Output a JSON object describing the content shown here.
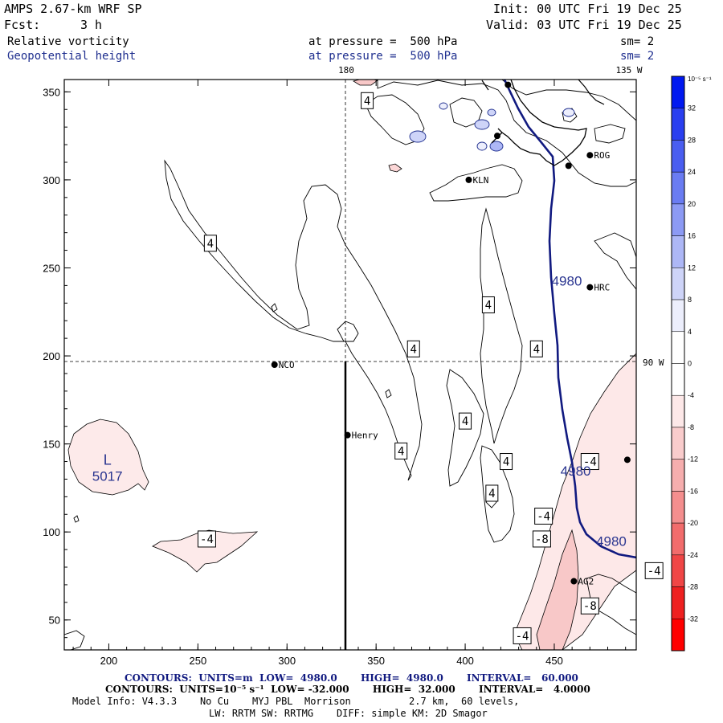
{
  "header": {
    "model": "AMPS 2.67-km WRF SP",
    "init": "Init: 00 UTC Fri 19 Dec 25",
    "fcst_label": "Fcst:",
    "fcst_value": "3 h",
    "valid": "Valid: 03 UTC Fri 19 Dec 25"
  },
  "fields": [
    {
      "name": "Relative vorticity",
      "level": "at pressure =  500 hPa",
      "smooth": "sm= 2",
      "color": "#000000"
    },
    {
      "name": "Geopotential height",
      "level": "at pressure =  500 hPa",
      "smooth": "sm= 2",
      "color": "#1f2f8f"
    }
  ],
  "map": {
    "x_ticks": [
      "200",
      "250",
      "300",
      "350",
      "400",
      "450"
    ],
    "y_ticks": [
      "350",
      "300",
      "250",
      "200",
      "150",
      "100",
      "50"
    ],
    "lon_labels": {
      "top_180": "180",
      "top_135w": "135 W",
      "right_90w": "90 W"
    },
    "stations": [
      {
        "name": "ROG",
        "x": 470,
        "y": 314
      },
      {
        "name": "KLN",
        "x": 402,
        "y": 300
      },
      {
        "name": "HRC",
        "x": 470,
        "y": 239
      },
      {
        "name": "NCO",
        "x": 293,
        "y": 195
      },
      {
        "name": "Henry",
        "x": 334,
        "y": 155
      },
      {
        "name": "AG2",
        "x": 461,
        "y": 72
      }
    ],
    "low_center": {
      "letter": "L",
      "value": "5017",
      "x": 215,
      "y": 140
    },
    "height_labels": [
      {
        "text": "4980",
        "x": 457,
        "y": 240
      },
      {
        "text": "4980",
        "x": 462,
        "y": 132
      },
      {
        "text": "4980",
        "x": 482,
        "y": 92
      }
    ],
    "vort_labels": [
      {
        "text": "4",
        "x": 345,
        "y": 345
      },
      {
        "text": "4",
        "x": 257,
        "y": 264
      },
      {
        "text": "4",
        "x": 413,
        "y": 229
      },
      {
        "text": "4",
        "x": 371,
        "y": 204
      },
      {
        "text": "4",
        "x": 440,
        "y": 204
      },
      {
        "text": "4",
        "x": 400,
        "y": 163
      },
      {
        "text": "4",
        "x": 364,
        "y": 146
      },
      {
        "text": "4",
        "x": 423,
        "y": 140
      },
      {
        "text": "4",
        "x": 415,
        "y": 122
      },
      {
        "text": "-4",
        "x": 470,
        "y": 140
      },
      {
        "text": "-4",
        "x": 444,
        "y": 109
      },
      {
        "text": "-8",
        "x": 443,
        "y": 96
      },
      {
        "text": "-4",
        "x": 506,
        "y": 78
      },
      {
        "text": "-8",
        "x": 470,
        "y": 58
      },
      {
        "text": "-4",
        "x": 432,
        "y": 41
      },
      {
        "text": "-4",
        "x": 255,
        "y": 96
      }
    ]
  },
  "colorbar": {
    "unit_label": "10⁻⁵ s⁻¹",
    "levels": [
      {
        "label": "32",
        "color": "#0018f0"
      },
      {
        "label": "28",
        "color": "#2a3ff0"
      },
      {
        "label": "24",
        "color": "#4a5ef0"
      },
      {
        "label": "20",
        "color": "#6a7cf2"
      },
      {
        "label": "16",
        "color": "#8c9af4"
      },
      {
        "label": "12",
        "color": "#adb7f6"
      },
      {
        "label": "8",
        "color": "#ced4f8"
      },
      {
        "label": "4",
        "color": "#eceefc"
      },
      {
        "label": "0",
        "color": "#ffffff"
      },
      {
        "label": "-4",
        "color": "#ffffff"
      },
      {
        "label": "-8",
        "color": "#fde8e8"
      },
      {
        "label": "-12",
        "color": "#f9cccc"
      },
      {
        "label": "-16",
        "color": "#f6aeae"
      },
      {
        "label": "-20",
        "color": "#f48e8e"
      },
      {
        "label": "-24",
        "color": "#f26c6c"
      },
      {
        "label": "-28",
        "color": "#f04646"
      },
      {
        "label": "-32",
        "color": "#ee2020"
      }
    ],
    "bottom_color": "#ff0000"
  },
  "footer": {
    "contour1": "CONTOURS:  UNITS=m  LOW=  4980.0       HIGH=  4980.0       INTERVAL=   60.000",
    "contour2": "CONTOURS:  UNITS=10⁻⁵ s⁻¹  LOW= -32.000       HIGH=  32.000       INTERVAL=   4.0000",
    "model_info": "Model Info: V4.3.3    No Cu    MYJ PBL  Morrison          2.7 km,  60 levels,",
    "model_info2": "LW: RRTM SW: RRTMG    DIFF: simple KM: 2D Smagor"
  }
}
